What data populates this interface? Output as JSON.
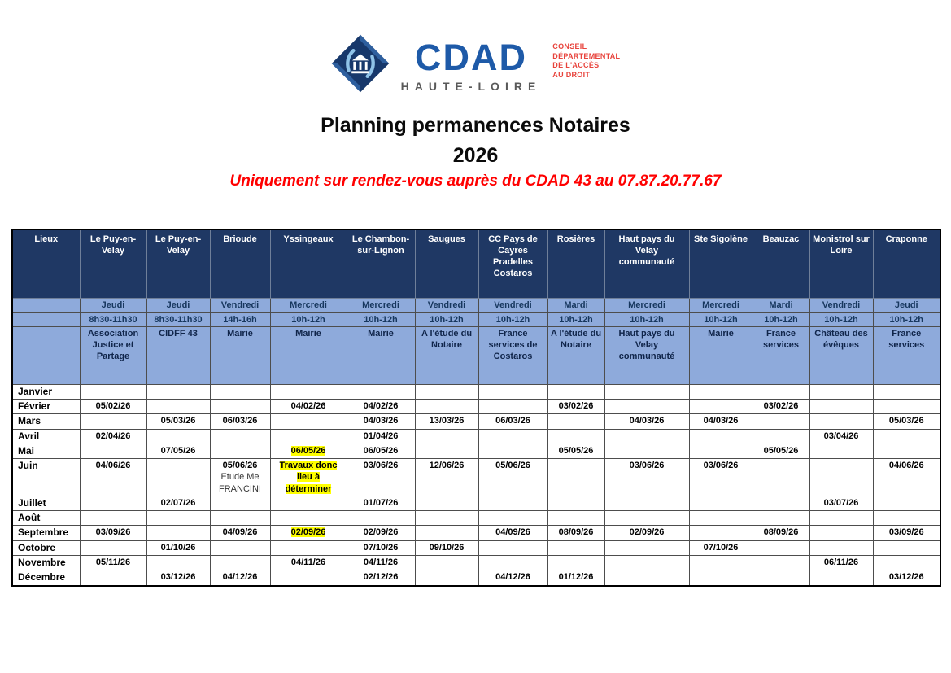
{
  "logo": {
    "acronym": "CDAD",
    "region": "HAUTE-LOIRE",
    "tagline_lines": [
      "CONSEIL",
      "DÉPARTEMENTAL",
      "DE L'ACCÈS",
      "AU DROIT"
    ]
  },
  "title_line1": "Planning permanences Notaires",
  "title_line2": "2026",
  "subtitle": "Uniquement sur rendez-vous auprès du CDAD 43 au 07.87.20.77.67",
  "colors": {
    "header_bg": "#1F3864",
    "subheader_bg": "#8EAADB",
    "subheader_text": "#17375E",
    "highlight": "#FFFF00",
    "accent_red": "#FF0000",
    "logo_blue": "#1E5AA8",
    "logo_navy": "#17386B",
    "logo_lightblue": "#8FC3E8",
    "logo_red": "#E8433C",
    "logo_gray": "#595959"
  },
  "table": {
    "corner_label": "Lieux",
    "columns": [
      {
        "city": "Le Puy-en-Velay",
        "day": "Jeudi",
        "hours": "8h30-11h30",
        "location": "Association Justice et Partage"
      },
      {
        "city": "Le Puy-en-Velay",
        "day": "Jeudi",
        "hours": "8h30-11h30",
        "location": "CIDFF 43"
      },
      {
        "city": "Brioude",
        "day": "Vendredi",
        "hours": "14h-16h",
        "location": "Mairie"
      },
      {
        "city": "Yssingeaux",
        "day": "Mercredi",
        "hours": "10h-12h",
        "location": "Mairie"
      },
      {
        "city": "Le Chambon-sur-Lignon",
        "day": "Mercredi",
        "hours": "10h-12h",
        "location": "Mairie"
      },
      {
        "city": "Saugues",
        "day": "Vendredi",
        "hours": "10h-12h",
        "location": "A l'étude du Notaire"
      },
      {
        "city": "CC Pays de Cayres Pradelles Costaros",
        "day": "Vendredi",
        "hours": "10h-12h",
        "location": "France services de Costaros"
      },
      {
        "city": "Rosières",
        "day": "Mardi",
        "hours": "10h-12h",
        "location": "A l'étude du Notaire"
      },
      {
        "city": "Haut pays du Velay communauté",
        "day": "Mercredi",
        "hours": "10h-12h",
        "location": "Haut pays du Velay communauté"
      },
      {
        "city": "Ste Sigolène",
        "day": "Mercredi",
        "hours": "10h-12h",
        "location": "Mairie"
      },
      {
        "city": "Beauzac",
        "day": "Mardi",
        "hours": "10h-12h",
        "location": "France services"
      },
      {
        "city": "Monistrol sur Loire",
        "day": "Vendredi",
        "hours": "10h-12h",
        "location": "Château des évêques"
      },
      {
        "city": "Craponne",
        "day": "Jeudi",
        "hours": "10h-12h",
        "location": "France services"
      }
    ],
    "months": [
      {
        "name": "Janvier",
        "cells": [
          "",
          "",
          "",
          "",
          "",
          "",
          "",
          "",
          "",
          "",
          "",
          "",
          ""
        ]
      },
      {
        "name": "Février",
        "cells": [
          "05/02/26",
          "",
          "",
          "04/02/26",
          "04/02/26",
          "",
          "",
          "03/02/26",
          "",
          "",
          "03/02/26",
          "",
          ""
        ]
      },
      {
        "name": "Mars",
        "cells": [
          "",
          "05/03/26",
          "06/03/26",
          "",
          "04/03/26",
          "13/03/26",
          "06/03/26",
          "",
          "04/03/26",
          "04/03/26",
          "",
          "",
          "05/03/26"
        ]
      },
      {
        "name": "Avril",
        "cells": [
          "02/04/26",
          "",
          "",
          "",
          "01/04/26",
          "",
          "",
          "",
          "",
          "",
          "",
          "03/04/26",
          ""
        ]
      },
      {
        "name": "Mai",
        "cells": [
          "",
          "07/05/26",
          "",
          {
            "text": "06/05/26",
            "highlight": true
          },
          "06/05/26",
          "",
          "",
          "05/05/26",
          "",
          "",
          "05/05/26",
          "",
          ""
        ]
      },
      {
        "name": "Juin",
        "cells": [
          "04/06/26",
          "",
          {
            "text": "05/06/26",
            "note_lines": [
              "Etude Me",
              "FRANCINI"
            ]
          },
          {
            "lines": [
              "Travaux donc",
              "lieu à",
              "déterminer"
            ],
            "highlight": true
          },
          "03/06/26",
          "12/06/26",
          "05/06/26",
          "",
          "03/06/26",
          "03/06/26",
          "",
          "",
          "04/06/26"
        ]
      },
      {
        "name": "Juillet",
        "cells": [
          "",
          "02/07/26",
          "",
          "",
          "01/07/26",
          "",
          "",
          "",
          "",
          "",
          "",
          "03/07/26",
          ""
        ]
      },
      {
        "name": "Août",
        "cells": [
          "",
          "",
          "",
          "",
          "",
          "",
          "",
          "",
          "",
          "",
          "",
          "",
          ""
        ]
      },
      {
        "name": "Septembre",
        "cells": [
          "03/09/26",
          "",
          "04/09/26",
          {
            "text": "02/09/26",
            "highlight": true
          },
          "02/09/26",
          "",
          "04/09/26",
          "08/09/26",
          "02/09/26",
          "",
          "08/09/26",
          "",
          "03/09/26"
        ]
      },
      {
        "name": "Octobre",
        "cells": [
          "",
          "01/10/26",
          "",
          "",
          "07/10/26",
          "09/10/26",
          "",
          "",
          "",
          "07/10/26",
          "",
          "",
          ""
        ]
      },
      {
        "name": "Novembre",
        "cells": [
          "05/11/26",
          "",
          "",
          "04/11/26",
          "04/11/26",
          "",
          "",
          "",
          "",
          "",
          "",
          "06/11/26",
          ""
        ]
      },
      {
        "name": "Décembre",
        "cells": [
          "",
          "03/12/26",
          "04/12/26",
          "",
          "02/12/26",
          "",
          "04/12/26",
          "01/12/26",
          "",
          "",
          "",
          "",
          "03/12/26"
        ]
      }
    ]
  }
}
